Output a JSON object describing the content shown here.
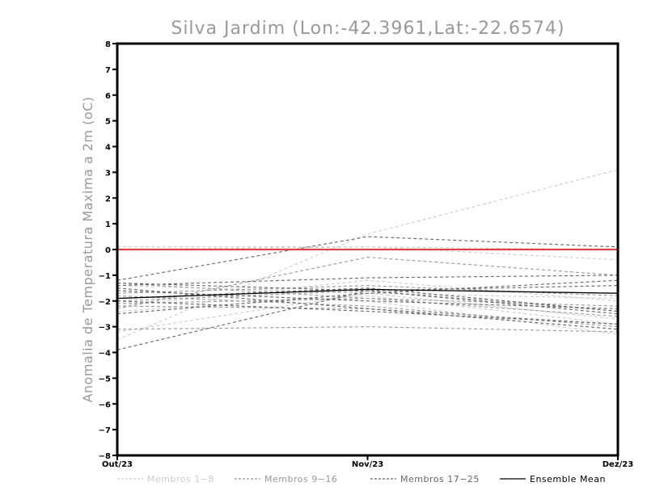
{
  "chart_data": {
    "type": "line",
    "title": "Silva Jardim (Lon:-42.3961,Lat:-22.6574)",
    "ylabel": "Anomalia de Temperatura Maxima a 2m (oC)",
    "xlabel": "",
    "categories": [
      "Out/23",
      "Nov/23",
      "Dez/23"
    ],
    "ylim": [
      -8,
      8
    ],
    "yticks": [
      8,
      7,
      6,
      5,
      4,
      3,
      2,
      1,
      0,
      -1,
      -2,
      -3,
      -4,
      -5,
      -6,
      -7,
      -8
    ],
    "grid": false,
    "reference_line": {
      "y": 0,
      "color": "#ff3333"
    },
    "legend": {
      "placement": "bottom",
      "entries": [
        {
          "label": "Membros 1-8",
          "color": "#cccccc",
          "style": "dashed"
        },
        {
          "label": "Membros 9-16",
          "color": "#999999",
          "style": "dashed"
        },
        {
          "label": "Membros 17-25",
          "color": "#666666",
          "style": "dashed"
        },
        {
          "label": "Ensemble Mean",
          "color": "#000000",
          "style": "solid"
        }
      ]
    },
    "groups": [
      {
        "color": "#cccccc",
        "dash": "4,3",
        "series": [
          [
            -3.5,
            0.6,
            3.1
          ],
          [
            0.0,
            0.1,
            -0.4
          ],
          [
            -2.2,
            -1.2,
            -2.0
          ],
          [
            -2.4,
            -1.8,
            -2.9
          ],
          [
            -1.4,
            -1.7,
            -1.9
          ],
          [
            0.1,
            0.1,
            0.0
          ],
          [
            -1.6,
            -2.0,
            -3.3
          ],
          [
            -3.2,
            -1.7,
            -2.7
          ]
        ]
      },
      {
        "color": "#999999",
        "dash": "4,3",
        "series": [
          [
            -2.3,
            -0.3,
            -1.0
          ],
          [
            -1.3,
            -1.9,
            -2.6
          ],
          [
            -3.1,
            -3.0,
            -3.2
          ],
          [
            -2.0,
            -1.6,
            -2.4
          ],
          [
            -1.8,
            -2.2,
            -3.0
          ],
          [
            -2.1,
            -1.9,
            -2.2
          ],
          [
            -1.7,
            -1.4,
            -1.8
          ],
          [
            -2.2,
            -2.3,
            -2.9
          ]
        ]
      },
      {
        "color": "#666666",
        "dash": "4,3",
        "series": [
          [
            -1.2,
            0.5,
            0.1
          ],
          [
            -3.9,
            -1.6,
            -1.4
          ],
          [
            -1.4,
            -1.1,
            -1.0
          ],
          [
            -1.5,
            -2.3,
            -3.1
          ],
          [
            -1.9,
            -1.5,
            -2.4
          ],
          [
            -2.5,
            -1.7,
            -1.2
          ],
          [
            -1.6,
            -2.0,
            -2.3
          ],
          [
            -2.0,
            -2.4,
            -2.9
          ],
          [
            -1.3,
            -1.6,
            -2.5
          ]
        ]
      }
    ],
    "ensemble_mean": [
      -1.9,
      -1.55,
      -1.7
    ]
  }
}
